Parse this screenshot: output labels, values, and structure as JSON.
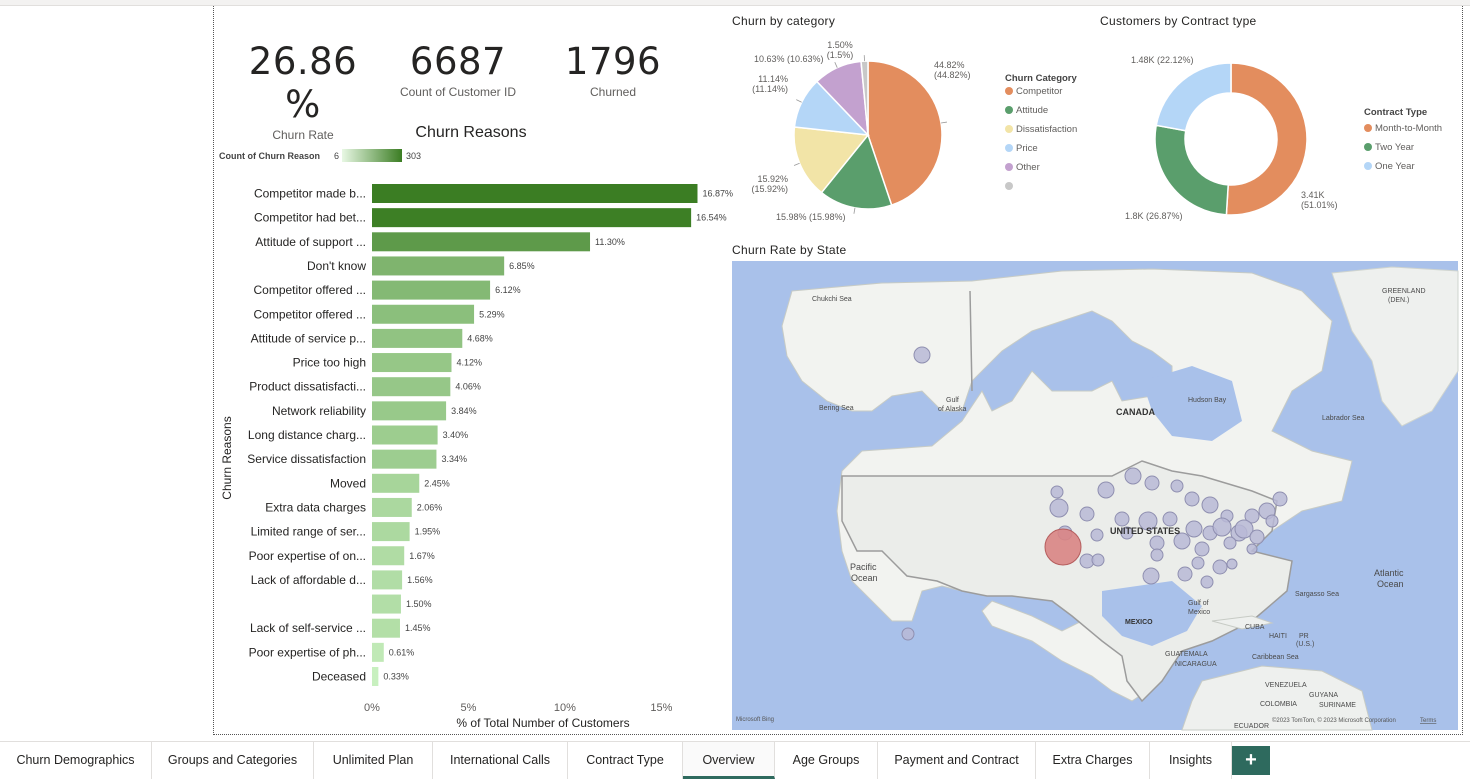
{
  "kpis": [
    {
      "value": "26.86 %",
      "label": "Churn Rate"
    },
    {
      "value": "6687",
      "label": "Count of Customer ID"
    },
    {
      "value": "1796",
      "label": "Churned"
    }
  ],
  "churn_reasons_chart": {
    "title": "Churn Reasons",
    "legend_title": "Count of Churn Reason",
    "legend_min": "6",
    "legend_max": "303",
    "y_axis_label": "Churn Reasons",
    "x_axis_label": "% of Total Number of Customers",
    "x_ticks": [
      "0%",
      "5%",
      "10%",
      "15%"
    ]
  },
  "churn_by_category_title": "Churn by category",
  "contract_title": "Customers by Contract type",
  "map": {
    "title": "Churn Rate by State",
    "labels": {
      "canada": "CANADA",
      "us": "UNITED STATES",
      "mexico": "MEXICO",
      "greenland": "GREENLAND",
      "greenland_sub": "(DEN.)",
      "hudson": "Hudson Bay",
      "labrador": "Labrador Sea",
      "chukchi": "Chukchi Sea",
      "bering": "Bering Sea",
      "alaska_gulf1": "Gulf",
      "alaska_gulf2": "of Alaska",
      "pacific1": "Pacific",
      "pacific2": "Ocean",
      "atlantic1": "Atlantic",
      "atlantic2": "Ocean",
      "sargasso": "Sargasso Sea",
      "mexico_gulf1": "Gulf of",
      "mexico_gulf2": "Mexico",
      "cuba": "CUBA",
      "haiti": "HAITI",
      "pr1": "PR",
      "pr2": "(U.S.)",
      "caribbean": "Caribbean Sea",
      "guatemala": "GUATEMALA",
      "nicaragua": "NICARAGUA",
      "venezuela": "VENEZUELA",
      "guyana": "GUYANA",
      "suriname": "SURINAME",
      "colombia": "COLOMBIA",
      "ecuador": "ECUADOR",
      "bing": "Microsoft Bing",
      "copyright": "©2023 TomTom, © 2023 Microsoft Corporation",
      "terms": "Terms"
    }
  },
  "tabs": [
    {
      "label": "Churn Demographics"
    },
    {
      "label": "Groups and Categories"
    },
    {
      "label": "Unlimited Plan"
    },
    {
      "label": "International Calls"
    },
    {
      "label": "Contract Type"
    },
    {
      "label": "Overview"
    },
    {
      "label": "Age Groups"
    },
    {
      "label": "Payment and Contract"
    },
    {
      "label": "Extra Charges"
    },
    {
      "label": "Insights"
    }
  ],
  "add_tab_label": "+",
  "colors": {
    "bar_dark": "#3b7d23",
    "bar_light": "#c8f0bf",
    "competitor": "#e38d5e",
    "attitude": "#5a9e6c",
    "dissatisfaction": "#f2e4a7",
    "price": "#b4d6f7",
    "other": "#c3a1cf",
    "blank": "#c8c8c8",
    "month": "#e38d5e",
    "two_year": "#5a9e6c",
    "one_year": "#b4d6f7",
    "accent": "#2e6a5e"
  },
  "chart_data": [
    {
      "type": "bar",
      "orientation": "horizontal",
      "title": "Churn Reasons",
      "ylabel": "Churn Reasons",
      "xlabel": "% of Total Number of Customers",
      "xlim": [
        0,
        17
      ],
      "categories": [
        "Competitor made b...",
        "Competitor had bet...",
        "Attitude of support ...",
        "Don't know",
        "Competitor offered ...",
        "Competitor offered ...",
        "Attitude of service p...",
        "Price too high",
        "Product dissatisfacti...",
        "Network reliability",
        "Long distance charg...",
        "Service dissatisfaction",
        "Moved",
        "Extra data charges",
        "Limited range of ser...",
        "Poor expertise of on...",
        "Lack of affordable d...",
        "",
        "Lack of self-service ...",
        "Poor expertise of ph...",
        "Deceased"
      ],
      "values": [
        16.87,
        16.54,
        11.3,
        6.85,
        6.12,
        5.29,
        4.68,
        4.12,
        4.06,
        3.84,
        3.4,
        3.34,
        2.45,
        2.06,
        1.95,
        1.67,
        1.56,
        1.5,
        1.45,
        0.61,
        0.33
      ],
      "data_labels": [
        "16.87%",
        "16.54%",
        "11.30%",
        "6.85%",
        "6.12%",
        "5.29%",
        "4.68%",
        "4.12%",
        "4.06%",
        "3.84%",
        "3.40%",
        "3.34%",
        "2.45%",
        "2.06%",
        "1.95%",
        "1.67%",
        "1.56%",
        "1.50%",
        "1.45%",
        "0.61%",
        "0.33%"
      ]
    },
    {
      "type": "pie",
      "title": "Churn by category",
      "legend_title": "Churn Category",
      "legend_position": "right",
      "slices": [
        {
          "name": "Competitor",
          "value": 44.82,
          "label": "44.82%\n(44.82%)"
        },
        {
          "name": "Attitude",
          "value": 15.98,
          "label": "15.98% (15.98%)"
        },
        {
          "name": "Dissatisfaction",
          "value": 15.92,
          "label": "15.92%\n(15.92%)"
        },
        {
          "name": "Price",
          "value": 11.14,
          "label": "11.14%\n(11.14%)"
        },
        {
          "name": "Other",
          "value": 10.63,
          "label": "10.63% (10.63%)"
        },
        {
          "name": "",
          "value": 1.5,
          "label": "1.50%\n(1.5%)"
        }
      ]
    },
    {
      "type": "pie",
      "subtype": "donut",
      "title": "Customers by Contract type",
      "legend_title": "Contract Type",
      "legend_position": "right",
      "slices": [
        {
          "name": "Month-to-Month",
          "value": 3410,
          "label": "3.41K\n(51.01%)"
        },
        {
          "name": "Two Year",
          "value": 1800,
          "label": "1.8K (26.87%)"
        },
        {
          "name": "One Year",
          "value": 1480,
          "label": "1.48K (22.12%)"
        }
      ]
    }
  ]
}
